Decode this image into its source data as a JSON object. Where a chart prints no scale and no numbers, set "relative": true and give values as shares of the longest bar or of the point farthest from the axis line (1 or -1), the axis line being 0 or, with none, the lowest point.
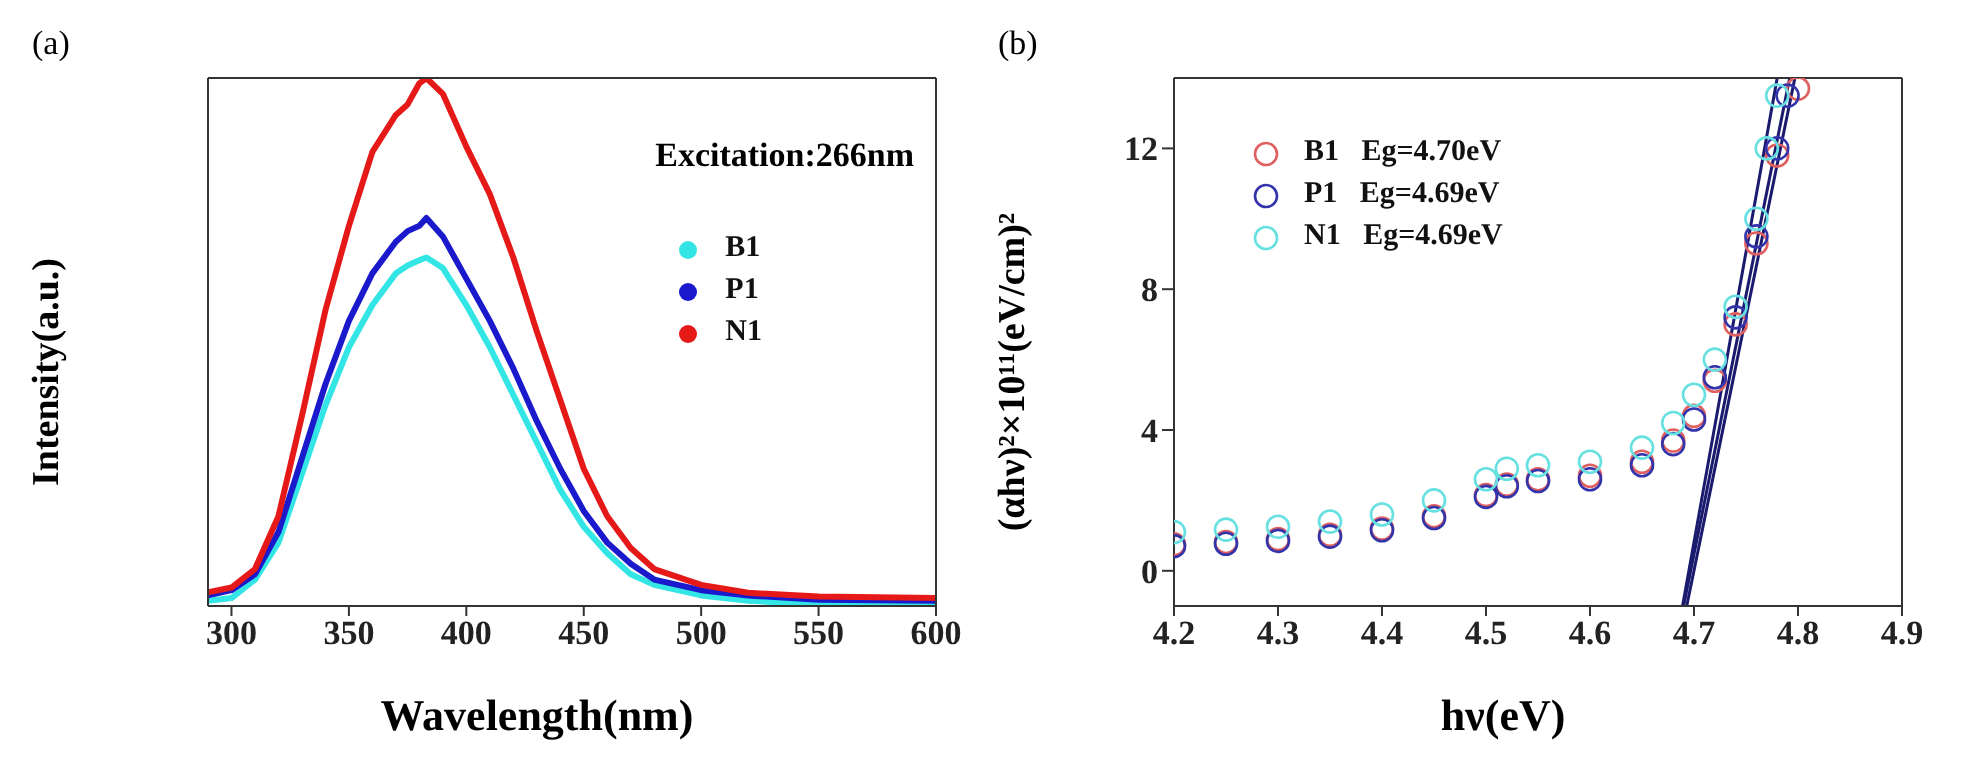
{
  "chart_data": [
    {
      "type": "line",
      "title": "(a)",
      "xlabel": "Wavelength(nm)",
      "ylabel": "Intensity(a.u.)",
      "relative": true,
      "annotations": [
        "Excitation:266nm"
      ],
      "legend": "top right",
      "x": [
        290,
        300,
        310,
        320,
        330,
        340,
        350,
        360,
        370,
        375,
        380,
        383,
        390,
        400,
        410,
        420,
        430,
        440,
        450,
        460,
        470,
        480,
        500,
        520,
        550,
        600
      ],
      "xlim": [
        290,
        600
      ],
      "xticks": [
        300,
        350,
        400,
        450,
        500,
        550,
        600
      ],
      "series": [
        {
          "name": "B1",
          "color": "#33e5e5",
          "values": [
            0.01,
            0.015,
            0.05,
            0.12,
            0.25,
            0.38,
            0.49,
            0.57,
            0.63,
            0.645,
            0.655,
            0.66,
            0.64,
            0.57,
            0.49,
            0.4,
            0.31,
            0.22,
            0.15,
            0.1,
            0.06,
            0.04,
            0.02,
            0.01,
            0.003,
            0
          ]
        },
        {
          "name": "P1",
          "color": "#1a1acc",
          "values": [
            0.02,
            0.03,
            0.06,
            0.14,
            0.28,
            0.42,
            0.54,
            0.63,
            0.69,
            0.71,
            0.72,
            0.735,
            0.7,
            0.62,
            0.54,
            0.45,
            0.35,
            0.26,
            0.18,
            0.12,
            0.08,
            0.05,
            0.03,
            0.02,
            0.012,
            0.01
          ]
        },
        {
          "name": "N1",
          "color": "#e61919",
          "values": [
            0.026,
            0.035,
            0.07,
            0.17,
            0.36,
            0.56,
            0.72,
            0.86,
            0.93,
            0.95,
            0.99,
            1.0,
            0.97,
            0.87,
            0.78,
            0.66,
            0.52,
            0.39,
            0.26,
            0.17,
            0.11,
            0.07,
            0.04,
            0.025,
            0.018,
            0.015
          ]
        }
      ]
    },
    {
      "type": "scatter",
      "title": "(b)",
      "xlabel": "hν(eV)",
      "ylabel": "(αhν)²×10¹¹(eV/cm)²",
      "marker": "circle",
      "legend": "top left",
      "x": [
        4.2,
        4.25,
        4.3,
        4.35,
        4.4,
        4.45,
        4.5,
        4.52,
        4.55,
        4.6,
        4.65,
        4.68,
        4.7,
        4.72,
        4.74,
        4.76,
        4.77,
        4.78
      ],
      "xlim": [
        4.2,
        4.9
      ],
      "xticks": [
        4.2,
        4.3,
        4.4,
        4.5,
        4.6,
        4.7,
        4.8,
        4.9
      ],
      "ylim": [
        -1,
        14
      ],
      "yticks": [
        0,
        4,
        8,
        12
      ],
      "series": [
        {
          "name": "B1   Eg=4.70eV",
          "color": "#e06060",
          "x": [
            4.2,
            4.25,
            4.3,
            4.35,
            4.4,
            4.45,
            4.5,
            4.52,
            4.55,
            4.6,
            4.65,
            4.68,
            4.7,
            4.72,
            4.74,
            4.76,
            4.78,
            4.8
          ],
          "values": [
            0.75,
            0.82,
            0.9,
            1.02,
            1.2,
            1.55,
            2.15,
            2.45,
            2.6,
            2.7,
            3.1,
            3.7,
            4.4,
            5.4,
            7.0,
            9.3,
            11.8,
            13.7
          ]
        },
        {
          "name": "P1   Eg=4.69eV",
          "color": "#3333aa",
          "x": [
            4.2,
            4.25,
            4.3,
            4.35,
            4.4,
            4.45,
            4.5,
            4.52,
            4.55,
            4.6,
            4.65,
            4.68,
            4.7,
            4.72,
            4.74,
            4.76,
            4.78,
            4.79
          ],
          "values": [
            0.7,
            0.77,
            0.85,
            0.97,
            1.15,
            1.5,
            2.1,
            2.4,
            2.55,
            2.6,
            3.0,
            3.6,
            4.3,
            5.5,
            7.2,
            9.5,
            12.0,
            13.5
          ]
        },
        {
          "name": "N1   Eg=4.69eV",
          "color": "#66e0e0",
          "values": [
            1.1,
            1.17,
            1.25,
            1.4,
            1.6,
            2.0,
            2.6,
            2.9,
            3.0,
            3.1,
            3.5,
            4.2,
            5.0,
            6.0,
            7.5,
            10.0,
            12.0,
            13.5
          ]
        },
        {
          "type": "line",
          "marker": "none",
          "color": "#1a1a6e",
          "x": [
            4.693,
            4.797
          ],
          "values": [
            -1,
            14
          ]
        },
        {
          "type": "line",
          "marker": "none",
          "color": "#1a1a6e",
          "x": [
            4.69,
            4.792
          ],
          "values": [
            -1,
            14
          ]
        },
        {
          "type": "line",
          "marker": "none",
          "color": "#1a1a6e",
          "x": [
            4.689,
            4.78
          ],
          "values": [
            -1,
            14
          ]
        }
      ]
    }
  ]
}
